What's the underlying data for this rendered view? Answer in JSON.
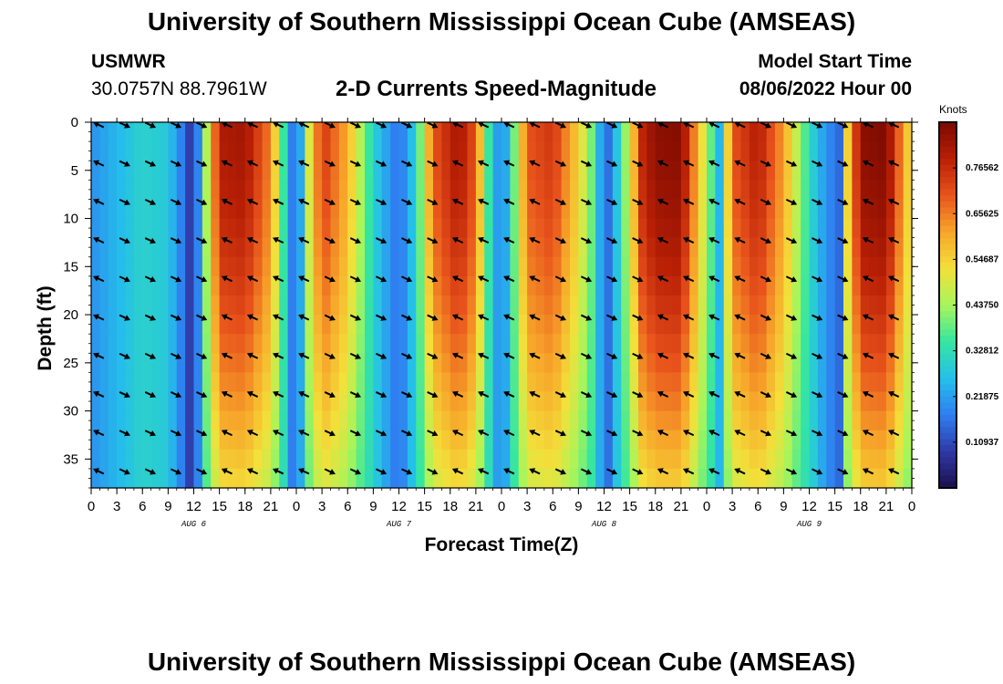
{
  "title": "University of Southern Mississippi Ocean Cube (AMSEAS)",
  "footer_title": "University of Southern Mississippi Ocean Cube (AMSEAS)",
  "station": {
    "name": "USMWR",
    "coords": "30.0757N  88.7961W"
  },
  "model_start": {
    "label": "Model Start Time",
    "value": "08/06/2022 Hour 00"
  },
  "chart_data": {
    "type": "heatmap",
    "title": "2-D Currents Speed-Magnitude",
    "xlabel": "Forecast Time(Z)",
    "ylabel": "Depth (ft)",
    "x_range_hours": [
      0,
      96
    ],
    "ylim": [
      0,
      38
    ],
    "x_tick_labels": [
      "0",
      "3",
      "6",
      "9",
      "12",
      "15",
      "18",
      "21",
      "0",
      "3",
      "6",
      "9",
      "12",
      "15",
      "18",
      "21",
      "0",
      "3",
      "6",
      "9",
      "12",
      "15",
      "18",
      "21",
      "0",
      "3",
      "6",
      "9",
      "12",
      "15",
      "18",
      "21",
      "0"
    ],
    "y_ticks": [
      0,
      5,
      10,
      15,
      20,
      25,
      30,
      35
    ],
    "day_labels": [
      {
        "label": "AUG 6",
        "hour": 12
      },
      {
        "label": "AUG 7",
        "hour": 36
      },
      {
        "label": "AUG 8",
        "hour": 60
      },
      {
        "label": "AUG 9",
        "hour": 84
      }
    ],
    "colorbar": {
      "label": "Knots",
      "range": [
        0,
        0.875
      ],
      "tick_labels": [
        "0.10937",
        "0.21875",
        "0.32812",
        "0.43750",
        "0.54687",
        "0.65625",
        "0.76562"
      ],
      "colors": [
        "#1b0f4d",
        "#2f3aa6",
        "#2f7ff0",
        "#25c0ea",
        "#36e6a0",
        "#a8f55a",
        "#f3e03a",
        "#f7a52a",
        "#e8531c",
        "#b81f05",
        "#7a0a00"
      ]
    },
    "surface_speed_profile": {
      "hours": [
        0,
        3,
        6,
        9,
        10.5,
        12,
        13.5,
        15,
        18,
        21,
        23,
        24,
        25.5,
        27,
        30,
        33,
        36,
        38,
        40,
        43,
        45,
        46.5,
        48,
        49.5,
        51,
        54,
        57,
        59,
        60,
        61,
        63,
        64.5,
        66,
        69,
        72,
        73.5,
        75,
        78,
        81,
        84,
        86,
        87.5,
        88.5,
        90,
        93,
        96
      ],
      "speed_knots": [
        0.2,
        0.25,
        0.3,
        0.28,
        0.18,
        0.05,
        0.45,
        0.8,
        0.82,
        0.65,
        0.25,
        0.1,
        0.5,
        0.75,
        0.6,
        0.3,
        0.15,
        0.3,
        0.7,
        0.82,
        0.7,
        0.35,
        0.15,
        0.4,
        0.7,
        0.75,
        0.55,
        0.35,
        0.12,
        0.2,
        0.5,
        0.78,
        0.85,
        0.86,
        0.45,
        0.25,
        0.7,
        0.8,
        0.62,
        0.32,
        0.2,
        0.15,
        0.55,
        0.85,
        0.87,
        0.5
      ]
    },
    "vector_rows_depth_ft": [
      0,
      4,
      8,
      12,
      16,
      20,
      24,
      28,
      32,
      36
    ]
  }
}
